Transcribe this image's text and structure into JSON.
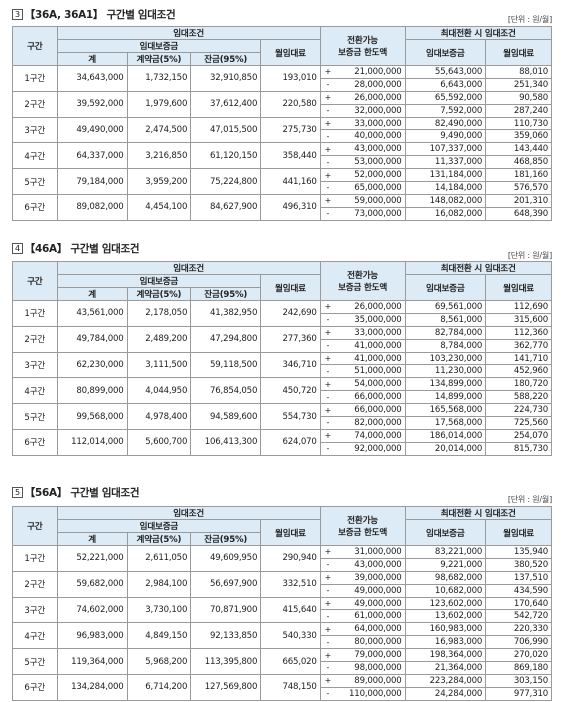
{
  "headers": {
    "col_range": "구간",
    "lease_terms": "임대조건",
    "deposit": "임대보증금",
    "total": "계",
    "contract": "계약금(5%)",
    "balance": "잔금(95%)",
    "monthly_rent": "월임대료",
    "conv_limit_line1": "전환가능",
    "conv_limit_line2": "보증금 한도액",
    "max_conv": "최대전환 시 임대조건",
    "max_deposit": "임대보증금",
    "max_rent": "월임대료"
  },
  "sections": [
    {
      "num": "3",
      "title": "【36A, 36A1】 구간별 임대조건",
      "unit": "[단위 : 원/월]",
      "rows": [
        {
          "range": "1구간",
          "total": "34,643,000",
          "contract": "1,732,150",
          "balance": "32,910,850",
          "rent": "193,010",
          "plus": "21,000,000",
          "plus_dep": "55,643,000",
          "plus_rent": "88,010",
          "minus": "28,000,000",
          "minus_dep": "6,643,000",
          "minus_rent": "251,340"
        },
        {
          "range": "2구간",
          "total": "39,592,000",
          "contract": "1,979,600",
          "balance": "37,612,400",
          "rent": "220,580",
          "plus": "26,000,000",
          "plus_dep": "65,592,000",
          "plus_rent": "90,580",
          "minus": "32,000,000",
          "minus_dep": "7,592,000",
          "minus_rent": "287,240"
        },
        {
          "range": "3구간",
          "total": "49,490,000",
          "contract": "2,474,500",
          "balance": "47,015,500",
          "rent": "275,730",
          "plus": "33,000,000",
          "plus_dep": "82,490,000",
          "plus_rent": "110,730",
          "minus": "40,000,000",
          "minus_dep": "9,490,000",
          "minus_rent": "359,060"
        },
        {
          "range": "4구간",
          "total": "64,337,000",
          "contract": "3,216,850",
          "balance": "61,120,150",
          "rent": "358,440",
          "plus": "43,000,000",
          "plus_dep": "107,337,000",
          "plus_rent": "143,440",
          "minus": "53,000,000",
          "minus_dep": "11,337,000",
          "minus_rent": "468,850"
        },
        {
          "range": "5구간",
          "total": "79,184,000",
          "contract": "3,959,200",
          "balance": "75,224,800",
          "rent": "441,160",
          "plus": "52,000,000",
          "plus_dep": "131,184,000",
          "plus_rent": "181,160",
          "minus": "65,000,000",
          "minus_dep": "14,184,000",
          "minus_rent": "576,570"
        },
        {
          "range": "6구간",
          "total": "89,082,000",
          "contract": "4,454,100",
          "balance": "84,627,900",
          "rent": "496,310",
          "plus": "59,000,000",
          "plus_dep": "148,082,000",
          "plus_rent": "201,310",
          "minus": "73,000,000",
          "minus_dep": "16,082,000",
          "minus_rent": "648,390"
        }
      ]
    },
    {
      "num": "4",
      "title": "【46A】 구간별 임대조건",
      "unit": "[단위 : 원/월]",
      "rows": [
        {
          "range": "1구간",
          "total": "43,561,000",
          "contract": "2,178,050",
          "balance": "41,382,950",
          "rent": "242,690",
          "plus": "26,000,000",
          "plus_dep": "69,561,000",
          "plus_rent": "112,690",
          "minus": "35,000,000",
          "minus_dep": "8,561,000",
          "minus_rent": "315,600"
        },
        {
          "range": "2구간",
          "total": "49,784,000",
          "contract": "2,489,200",
          "balance": "47,294,800",
          "rent": "277,360",
          "plus": "33,000,000",
          "plus_dep": "82,784,000",
          "plus_rent": "112,360",
          "minus": "41,000,000",
          "minus_dep": "8,784,000",
          "minus_rent": "362,770"
        },
        {
          "range": "3구간",
          "total": "62,230,000",
          "contract": "3,111,500",
          "balance": "59,118,500",
          "rent": "346,710",
          "plus": "41,000,000",
          "plus_dep": "103,230,000",
          "plus_rent": "141,710",
          "minus": "51,000,000",
          "minus_dep": "11,230,000",
          "minus_rent": "452,960"
        },
        {
          "range": "4구간",
          "total": "80,899,000",
          "contract": "4,044,950",
          "balance": "76,854,050",
          "rent": "450,720",
          "plus": "54,000,000",
          "plus_dep": "134,899,000",
          "plus_rent": "180,720",
          "minus": "66,000,000",
          "minus_dep": "14,899,000",
          "minus_rent": "588,220"
        },
        {
          "range": "5구간",
          "total": "99,568,000",
          "contract": "4,978,400",
          "balance": "94,589,600",
          "rent": "554,730",
          "plus": "66,000,000",
          "plus_dep": "165,568,000",
          "plus_rent": "224,730",
          "minus": "82,000,000",
          "minus_dep": "17,568,000",
          "minus_rent": "725,560"
        },
        {
          "range": "6구간",
          "total": "112,014,000",
          "contract": "5,600,700",
          "balance": "106,413,300",
          "rent": "624,070",
          "plus": "74,000,000",
          "plus_dep": "186,014,000",
          "plus_rent": "254,070",
          "minus": "92,000,000",
          "minus_dep": "20,014,000",
          "minus_rent": "815,730"
        }
      ]
    },
    {
      "num": "5",
      "title": "【56A】 구간별 임대조건",
      "unit": "[단위 : 원/월]",
      "rows": [
        {
          "range": "1구간",
          "total": "52,221,000",
          "contract": "2,611,050",
          "balance": "49,609,950",
          "rent": "290,940",
          "plus": "31,000,000",
          "plus_dep": "83,221,000",
          "plus_rent": "135,940",
          "minus": "43,000,000",
          "minus_dep": "9,221,000",
          "minus_rent": "380,520"
        },
        {
          "range": "2구간",
          "total": "59,682,000",
          "contract": "2,984,100",
          "balance": "56,697,900",
          "rent": "332,510",
          "plus": "39,000,000",
          "plus_dep": "98,682,000",
          "plus_rent": "137,510",
          "minus": "49,000,000",
          "minus_dep": "10,682,000",
          "minus_rent": "434,590"
        },
        {
          "range": "3구간",
          "total": "74,602,000",
          "contract": "3,730,100",
          "balance": "70,871,900",
          "rent": "415,640",
          "plus": "49,000,000",
          "plus_dep": "123,602,000",
          "plus_rent": "170,640",
          "minus": "61,000,000",
          "minus_dep": "13,602,000",
          "minus_rent": "542,720"
        },
        {
          "range": "4구간",
          "total": "96,983,000",
          "contract": "4,849,150",
          "balance": "92,133,850",
          "rent": "540,330",
          "plus": "64,000,000",
          "plus_dep": "160,983,000",
          "plus_rent": "220,330",
          "minus": "80,000,000",
          "minus_dep": "16,983,000",
          "minus_rent": "706,990"
        },
        {
          "range": "5구간",
          "total": "119,364,000",
          "contract": "5,968,200",
          "balance": "113,395,800",
          "rent": "665,020",
          "plus": "79,000,000",
          "plus_dep": "198,364,000",
          "plus_rent": "270,020",
          "minus": "98,000,000",
          "minus_dep": "21,364,000",
          "minus_rent": "869,180"
        },
        {
          "range": "6구간",
          "total": "134,284,000",
          "contract": "6,714,200",
          "balance": "127,569,800",
          "rent": "748,150",
          "plus": "89,000,000",
          "plus_dep": "223,284,000",
          "plus_rent": "303,150",
          "minus": "110,000,000",
          "minus_dep": "24,284,000",
          "minus_rent": "977,310"
        }
      ]
    }
  ]
}
